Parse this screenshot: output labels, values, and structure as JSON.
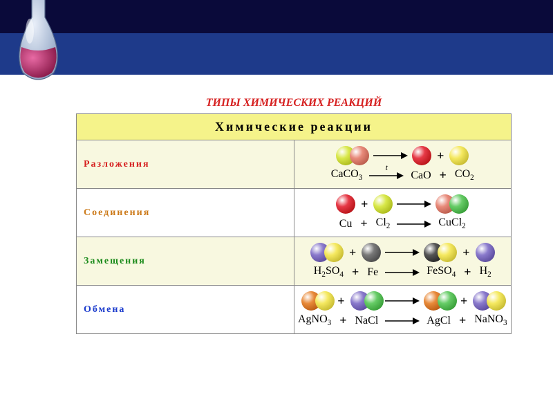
{
  "page": {
    "super_title": "ТИПЫ ХИМИЧЕСКИХ РЕАКЦИЙ",
    "super_title_color": "#d62020",
    "super_title_fontsize": 16,
    "bg_top": "#0a0a3a",
    "bg_mid": "#1e3a8a",
    "bg_bottom": "#ffffff"
  },
  "table": {
    "header": "Химические   реакции",
    "header_bg": "#f5f38a",
    "header_color": "#000000",
    "border_color": "#888888",
    "rows": [
      {
        "label": "Разложения",
        "label_color": "#d62020",
        "label_bg": "#f8f8e0",
        "cell_bg": "#f8f8e0",
        "diagram": [
          {
            "t": "pair",
            "c1": "#d9e84a",
            "c2": "#e88a7a"
          },
          {
            "t": "arrow"
          },
          {
            "t": "atom",
            "c": "#e63946"
          },
          {
            "t": "plus"
          },
          {
            "t": "atom",
            "c": "#f5e960"
          }
        ],
        "formula": [
          "CaCO₃",
          "→t",
          "CaO",
          "+",
          "CO₂"
        ]
      },
      {
        "label": "Соединения",
        "label_color": "#cc7a1a",
        "label_bg": "#ffffff",
        "cell_bg": "#ffffff",
        "diagram": [
          {
            "t": "atom",
            "c": "#e63946"
          },
          {
            "t": "plus"
          },
          {
            "t": "atom",
            "c": "#d9e84a"
          },
          {
            "t": "arrow"
          },
          {
            "t": "pair",
            "c1": "#e88a7a",
            "c2": "#66cc66"
          }
        ],
        "formula": [
          "Cu",
          "+",
          "Cl₂",
          "→",
          "CuCl₂"
        ]
      },
      {
        "label": "Замещения",
        "label_color": "#1a8a1a",
        "label_bg": "#f8f8e0",
        "cell_bg": "#f8f8e0",
        "diagram": [
          {
            "t": "pair",
            "c1": "#8a7acc",
            "c2": "#f5e960"
          },
          {
            "t": "plus"
          },
          {
            "t": "atom",
            "c": "#787878"
          },
          {
            "t": "arrow"
          },
          {
            "t": "pair",
            "c1": "#555555",
            "c2": "#f5e960"
          },
          {
            "t": "plus"
          },
          {
            "t": "atom",
            "c": "#8a7acc"
          }
        ],
        "formula": [
          "H₂SO₄",
          "+",
          "Fe",
          "→",
          "FeSO₄",
          "+",
          "H₂"
        ]
      },
      {
        "label": "Обмена",
        "label_color": "#1a3acc",
        "label_bg": "#ffffff",
        "cell_bg": "#ffffff",
        "diagram": [
          {
            "t": "pair",
            "c1": "#e88a3a",
            "c2": "#f5e960"
          },
          {
            "t": "plus"
          },
          {
            "t": "pair",
            "c1": "#8a7acc",
            "c2": "#66cc66"
          },
          {
            "t": "arrow"
          },
          {
            "t": "pair",
            "c1": "#e88a3a",
            "c2": "#66cc66"
          },
          {
            "t": "plus"
          },
          {
            "t": "pair",
            "c1": "#8a7acc",
            "c2": "#f5e960"
          }
        ],
        "formula": [
          "AgNO₃",
          "+",
          "NaCl",
          "→",
          "AgCl",
          "+",
          "NaNO₃"
        ]
      }
    ]
  },
  "flask": {
    "glass_color": "#b8c8e0",
    "liquid_color": "#c93a7a",
    "highlight": "#ffffff"
  },
  "arrow": {
    "color": "#000000",
    "length": 50
  }
}
